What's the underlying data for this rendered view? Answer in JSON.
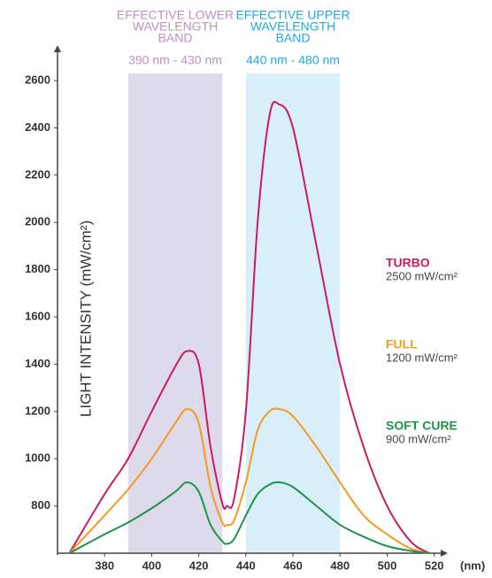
{
  "chart_data": {
    "type": "line",
    "y_label": "LIGHT INTENSITY (mW/cm²)",
    "x_label": "(nm)",
    "xlim": [
      360,
      525
    ],
    "ylim": [
      600,
      2750
    ],
    "xticks": [
      380,
      400,
      420,
      440,
      460,
      480,
      500,
      520
    ],
    "yticks": [
      800,
      1000,
      1200,
      1400,
      1600,
      1800,
      2000,
      2200,
      2400,
      2600
    ],
    "bands": [
      {
        "lines": [
          "EFFECTIVE LOWER",
          "WAVELENGTH",
          "BAND"
        ],
        "range_label": "390 nm - 430 nm",
        "from": 390,
        "to": 430,
        "color": "#dddaec",
        "text_color": "#c18fc6"
      },
      {
        "lines": [
          "EFFECTIVE UPPER",
          "WAVELENGTH",
          "BAND"
        ],
        "range_label": "440 nm - 480 nm",
        "from": 440,
        "to": 480,
        "color": "#d8effa",
        "text_color": "#1fa9e1"
      }
    ],
    "x": [
      365,
      380,
      390,
      400,
      410,
      415,
      420,
      425,
      430,
      432,
      435,
      440,
      445,
      450,
      454,
      460,
      470,
      480,
      490,
      500,
      510,
      518
    ],
    "series": [
      {
        "name": "TURBO",
        "rating": "2500 mW/cm²",
        "color": "#cc1a62",
        "values": [
          600,
          850,
          1000,
          1200,
          1390,
          1455,
          1400,
          1050,
          810,
          800,
          830,
          1200,
          2000,
          2450,
          2500,
          2400,
          1900,
          1400,
          1050,
          800,
          650,
          600
        ]
      },
      {
        "name": "FULL",
        "rating": "1200 mW/cm²",
        "color": "#f39a1f",
        "values": [
          600,
          760,
          870,
          1000,
          1150,
          1210,
          1150,
          880,
          730,
          720,
          740,
          900,
          1120,
          1200,
          1210,
          1180,
          1050,
          900,
          760,
          680,
          620,
          600
        ]
      },
      {
        "name": "SOFT CURE",
        "rating": "900 mW/cm²",
        "color": "#1f9448",
        "values": [
          600,
          680,
          730,
          790,
          860,
          900,
          860,
          720,
          650,
          640,
          660,
          760,
          850,
          890,
          900,
          880,
          800,
          720,
          670,
          630,
          610,
          600
        ]
      }
    ]
  }
}
